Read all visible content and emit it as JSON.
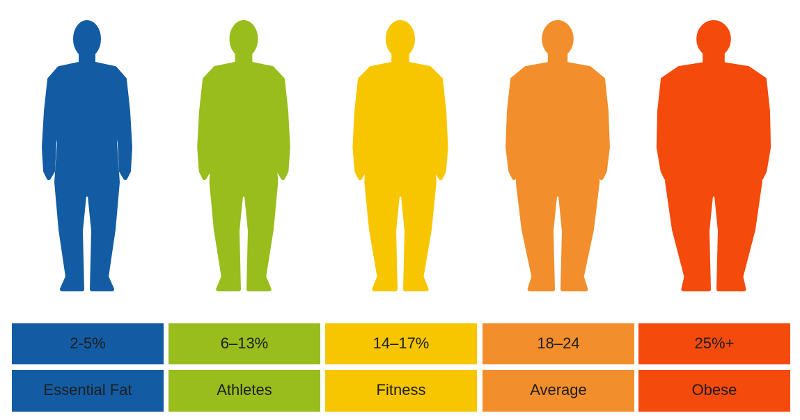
{
  "columns": [
    {
      "range": "2-5%",
      "label": "Essential Fat",
      "color": "#135ca3"
    },
    {
      "range": "6–13%",
      "label": "Athletes",
      "color": "#98bd1c"
    },
    {
      "range": "14–17%",
      "label": "Fitness",
      "color": "#f7c600"
    },
    {
      "range": "18–24",
      "label": "Average",
      "color": "#f28e2b"
    },
    {
      "range": "25%+",
      "label": "Obese",
      "color": "#f44a0c"
    }
  ]
}
